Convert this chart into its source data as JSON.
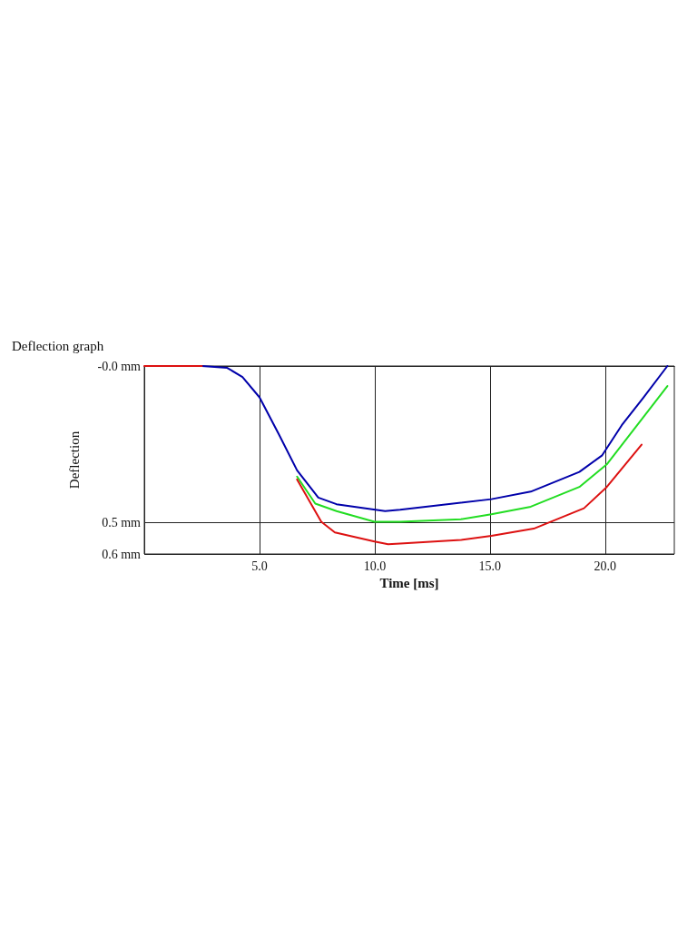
{
  "chart_data": {
    "type": "line",
    "title": "Deflection graph",
    "xlabel": "Time [ms]",
    "ylabel": "Deflection",
    "xlim": [
      0,
      23
    ],
    "xticks": [
      {
        "value": 5,
        "label": "5.0"
      },
      {
        "value": 10,
        "label": "10.0"
      },
      {
        "value": 15,
        "label": "15.0"
      },
      {
        "value": 20,
        "label": "20.0"
      }
    ],
    "ylim": [
      0.6,
      0
    ],
    "yticks": [
      {
        "value": 0,
        "label": "-0.0 mm"
      },
      {
        "value": 0.5,
        "label": "0.5 mm"
      },
      {
        "value": 0.6,
        "label": "0.6 mm"
      }
    ],
    "grid": true,
    "marker": "none",
    "line_style": "solid",
    "series": [
      {
        "color": "#22dd22",
        "x": [
          6.63,
          7.42,
          8.34,
          9.99,
          11.1,
          13.74,
          15.06,
          16.77,
          18.88,
          20.07,
          22.7
        ],
        "values": [
          0.353,
          0.439,
          0.463,
          0.497,
          0.497,
          0.489,
          0.473,
          0.449,
          0.386,
          0.314,
          0.064
        ]
      },
      {
        "color": "#0000aa",
        "x": [
          2.5,
          3.6,
          4.26,
          5.0,
          5.84,
          6.63,
          7.55,
          8.34,
          10.45,
          11.1,
          15.06,
          16.77,
          18.88,
          19.87,
          20.72,
          21.65,
          22.7
        ],
        "values": [
          0,
          0.006,
          0.035,
          0.1,
          0.218,
          0.333,
          0.42,
          0.441,
          0.463,
          0.459,
          0.425,
          0.401,
          0.338,
          0.285,
          0.189,
          0.102,
          0
        ]
      },
      {
        "color": "#dd1111",
        "x": [
          0,
          2.5,
          5.0,
          6.63,
          7.68,
          8.27,
          9.99,
          10.58,
          11.1,
          13.74,
          15.06,
          16.9,
          19.08,
          20.07,
          21.58
        ],
        "values": [
          0,
          0,
          null,
          0.362,
          0.497,
          0.531,
          0.56,
          0.569,
          0.567,
          0.555,
          0.542,
          0.519,
          0.454,
          0.386,
          0.251
        ]
      }
    ]
  }
}
